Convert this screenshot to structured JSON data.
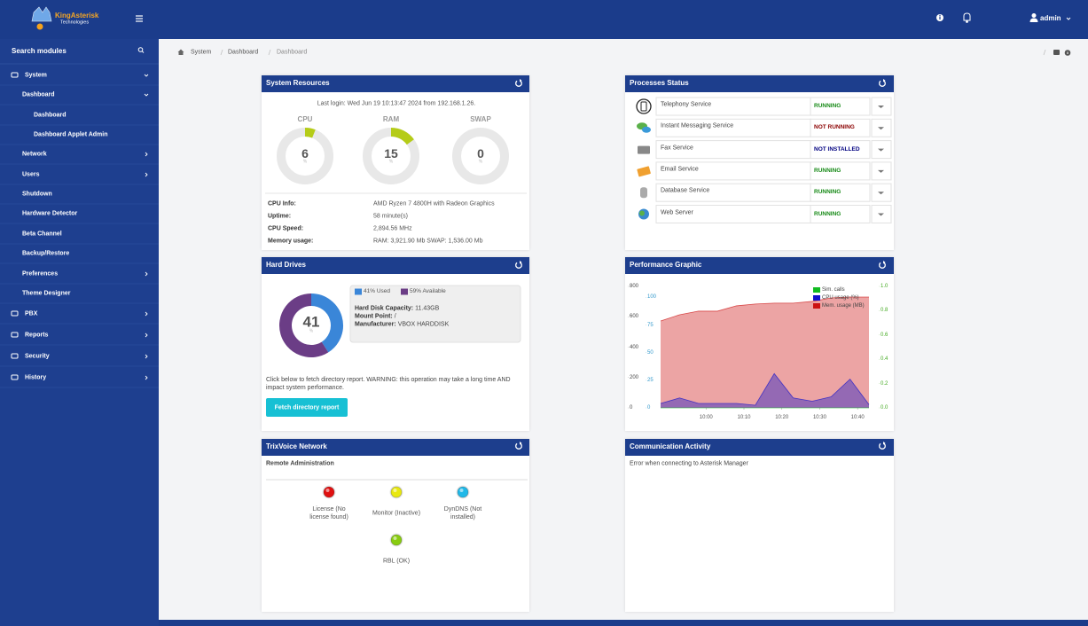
{
  "header": {
    "brand": "KingAsterisk",
    "brand_sub": "Technologies",
    "user": "admin"
  },
  "sidebar": {
    "search": "Search modules",
    "items": [
      "System",
      "Dashboard",
      "Dashboard",
      "Dashboard Applet Admin",
      "Network",
      "Users",
      "Shutdown",
      "Hardware Detector",
      "Beta Channel",
      "Backup/Restore",
      "Preferences",
      "Theme Designer",
      "PBX",
      "Reports",
      "Security",
      "History"
    ]
  },
  "breadcrumb": [
    "System",
    "Dashboard",
    "Dashboard"
  ],
  "system_resources": {
    "title": "System Resources",
    "last_login": "Last login: Wed Jun 19 10:13:47 2024 from 192.168.1.26.",
    "unit": "%",
    "gauge_color": "#b5cc18",
    "gauges": [
      {
        "label": "CPU",
        "value": 6
      },
      {
        "label": "RAM",
        "value": 15
      },
      {
        "label": "SWAP",
        "value": 0
      }
    ],
    "info": [
      [
        "CPU Info:",
        "AMD Ryzen 7 4800H with Radeon Graphics"
      ],
      [
        "Uptime:",
        "58 minute(s)"
      ],
      [
        "CPU Speed:",
        "2,894.56 MHz"
      ],
      [
        "Memory usage:",
        "RAM: 3,921.90 Mb SWAP: 1,536.00 Mb"
      ]
    ]
  },
  "processes": {
    "title": "Processes Status",
    "rows": [
      {
        "name": "Telephony Service",
        "status": "RUNNING",
        "color": "#178a17"
      },
      {
        "name": "Instant Messaging Service",
        "status": "NOT RUNNING",
        "color": "#8b0000"
      },
      {
        "name": "Fax Service",
        "status": "NOT INSTALLED",
        "color": "#000080"
      },
      {
        "name": "Email Service",
        "status": "RUNNING",
        "color": "#178a17"
      },
      {
        "name": "Database Service",
        "status": "RUNNING",
        "color": "#178a17"
      },
      {
        "name": "Web Server",
        "status": "RUNNING",
        "color": "#178a17"
      }
    ]
  },
  "hard_drives": {
    "title": "Hard Drives",
    "unit": "%",
    "series": [
      {
        "label": "41% Used",
        "value": 41,
        "color": "#3a86d8"
      },
      {
        "label": "59% Available",
        "value": 59,
        "color": "#6b3d86"
      }
    ],
    "details": [
      [
        "Hard Disk Capacity:",
        "11.43GB"
      ],
      [
        "Mount Point:",
        "/"
      ],
      [
        "Manufacturer:",
        "VBOX HARDDISK"
      ]
    ],
    "note": "Click below to fetch directory report. WARNING: this operation may take a long time AND impact system performance.",
    "button": "Fetch directory report"
  },
  "performance": {
    "title": "Performance Graphic",
    "chart_data": {
      "type": "area",
      "x": [
        "09:48",
        "09:53",
        "09:58",
        "10:03",
        "10:08",
        "10:13",
        "10:18",
        "10:23",
        "10:28",
        "10:33",
        "10:38",
        "10:43"
      ],
      "xlim": [
        "09:48",
        "10:43"
      ],
      "xticks": [
        "10:00",
        "10:10",
        "10:20",
        "10:30",
        "10:40"
      ],
      "ylim": [
        0,
        800
      ],
      "yticks": [
        0,
        200,
        400,
        600,
        800
      ],
      "y_color": "#444444",
      "y2lim": [
        0,
        110
      ],
      "y2ticks": [
        0,
        25,
        50,
        75,
        100
      ],
      "y2_color": "#3399cc",
      "y3lim": [
        0,
        1
      ],
      "y3ticks": [
        {
          "value": 0,
          "label": "0.0"
        },
        {
          "value": 0.2,
          "label": "0.2"
        },
        {
          "value": 0.4,
          "label": "0.4"
        },
        {
          "value": 0.6,
          "label": "0.6"
        },
        {
          "value": 0.8,
          "label": "0.8"
        },
        {
          "value": 1,
          "label": "1.0"
        }
      ],
      "y3_color": "#44aa22",
      "series": [
        {
          "name": "Sim. calls",
          "color": "#11bb22",
          "axis": "y3",
          "values": [
            0,
            0,
            0,
            0,
            0,
            0,
            0,
            0,
            0,
            0,
            0,
            0
          ]
        },
        {
          "name": "CPU usage (%)",
          "color": "#1111cc",
          "axis": "y2",
          "values": [
            4,
            9,
            4,
            4,
            4,
            2.4,
            31,
            9,
            6,
            10,
            26,
            3
          ]
        },
        {
          "name": "Mem. usage (MB)",
          "color": "#cc1111",
          "axis": "y",
          "values": [
            572,
            613,
            637,
            637,
            672,
            684,
            690,
            690,
            701,
            724,
            730,
            730
          ]
        }
      ]
    }
  },
  "trixvoice": {
    "title": "TrixVoice Network",
    "section": "Remote Administration",
    "indicators": [
      {
        "label": "License (No license found)",
        "color": "#e01010"
      },
      {
        "label": "Monitor (Inactive)",
        "color": "#e8e810"
      },
      {
        "label": "DynDNS (Not installed)",
        "color": "#20b8e8"
      },
      {
        "label": "RBL (OK)",
        "color": "#88cc10"
      }
    ]
  },
  "communication": {
    "title": "Communication Activity",
    "message": "Error when connecting to Asterisk Manager"
  }
}
